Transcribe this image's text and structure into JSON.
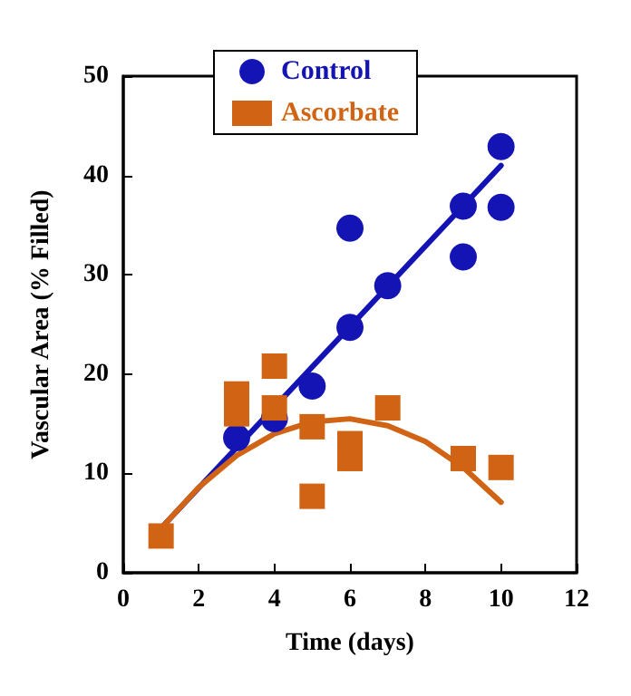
{
  "chart_data": {
    "type": "scatter",
    "xlabel": "Time (days)",
    "ylabel": "Vascular Area (% Filled)",
    "xlim": [
      0,
      12
    ],
    "xticks": [
      0,
      2,
      4,
      6,
      8,
      10,
      12
    ],
    "ylim": [
      0,
      50
    ],
    "yticks": [
      0,
      10,
      20,
      30,
      40,
      50
    ],
    "grid": false,
    "legend": "top",
    "series": [
      {
        "name": "Control",
        "color": "#1414b4",
        "marker": "circle",
        "x": [
          3,
          4,
          5,
          6,
          6,
          7,
          9,
          9,
          10,
          10
        ],
        "values": [
          13.6,
          15.5,
          18.8,
          24.7,
          34.7,
          28.9,
          36.9,
          31.8,
          42.9,
          36.8
        ]
      },
      {
        "name": "Ascorbate",
        "color": "#d06414",
        "marker": "square",
        "x": [
          1,
          3,
          3,
          4,
          4,
          5,
          5,
          6,
          6,
          7,
          9,
          10
        ],
        "values": [
          3.7,
          18,
          16,
          20.8,
          16.6,
          14.7,
          7.7,
          13,
          11.5,
          16.6,
          11.5,
          10.6
        ]
      },
      {
        "type": "line",
        "color": "#1414b4",
        "marker": "none",
        "x": [
          1,
          10
        ],
        "values": [
          4.5,
          41
        ]
      },
      {
        "type": "line",
        "color": "#d06414",
        "marker": "none",
        "x": [
          1,
          2,
          3,
          4,
          5,
          6,
          7,
          8,
          9,
          10
        ],
        "values": [
          4.5,
          8.6,
          11.8,
          14,
          15.2,
          15.5,
          14.8,
          13.2,
          10.6,
          7.1
        ]
      }
    ]
  }
}
